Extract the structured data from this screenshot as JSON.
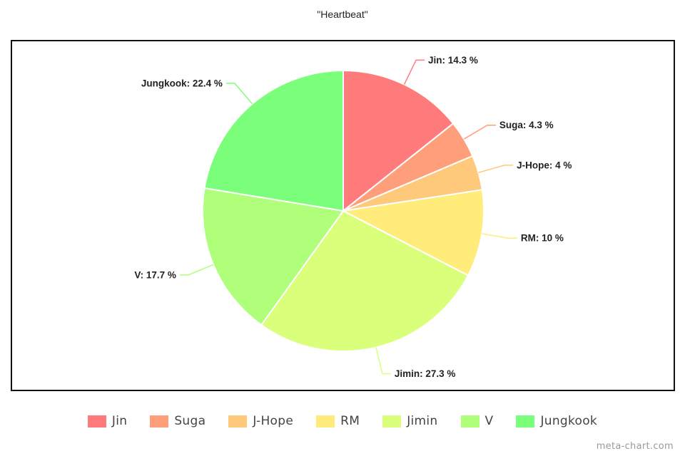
{
  "chart_data": {
    "type": "pie",
    "title": "\"Heartbeat\"",
    "legend_position": "bottom",
    "slices": [
      {
        "name": "Jin",
        "value": 14.3,
        "label": "Jin: 14.3 %",
        "color": "#ff7b7b"
      },
      {
        "name": "Suga",
        "value": 4.3,
        "label": "Suga: 4.3 %",
        "color": "#ff9e7b"
      },
      {
        "name": "J-Hope",
        "value": 4,
        "label": "J-Hope: 4 %",
        "color": "#ffc97b"
      },
      {
        "name": "RM",
        "value": 10,
        "label": "RM: 10 %",
        "color": "#ffec7b"
      },
      {
        "name": "Jimin",
        "value": 27.3,
        "label": "Jimin: 27.3 %",
        "color": "#daff7b"
      },
      {
        "name": "V",
        "value": 17.7,
        "label": "V: 17.7 %",
        "color": "#afff7b"
      },
      {
        "name": "Jungkook",
        "value": 22.4,
        "label": "Jungkook: 22.4 %",
        "color": "#7bff7b"
      }
    ]
  },
  "watermark": "meta-chart.com"
}
